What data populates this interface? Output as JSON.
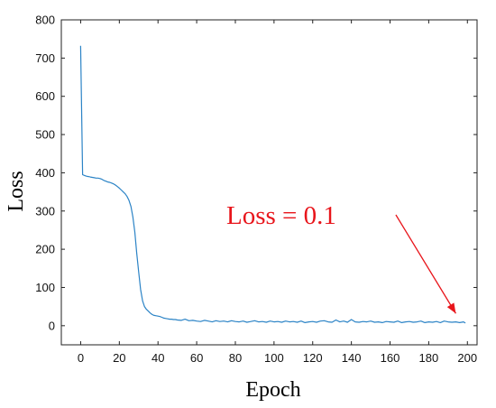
{
  "chart_data": {
    "type": "line",
    "title": "",
    "xlabel": "Epoch",
    "ylabel": "Loss",
    "xlim": [
      -10,
      205
    ],
    "ylim": [
      -50,
      800
    ],
    "xticks": [
      0,
      20,
      40,
      60,
      80,
      100,
      120,
      140,
      160,
      180,
      200
    ],
    "yticks": [
      0,
      100,
      200,
      300,
      400,
      500,
      600,
      700,
      800
    ],
    "grid": false,
    "legend": "none",
    "series": [
      {
        "color": "#2b83c6",
        "x": [
          0,
          1,
          2,
          3,
          4,
          5,
          6,
          7,
          8,
          9,
          10,
          11,
          12,
          13,
          14,
          15,
          16,
          17,
          18,
          19,
          20,
          21,
          22,
          23,
          24,
          25,
          26,
          27,
          28,
          29,
          30,
          31,
          32,
          33,
          34,
          35,
          36,
          37,
          38,
          39,
          40,
          41,
          42,
          43,
          44,
          45,
          46,
          47,
          48,
          49,
          50,
          52,
          54,
          56,
          58,
          60,
          62,
          64,
          66,
          68,
          70,
          72,
          74,
          76,
          78,
          80,
          82,
          84,
          86,
          88,
          90,
          92,
          94,
          96,
          98,
          100,
          102,
          104,
          106,
          108,
          110,
          112,
          114,
          116,
          118,
          120,
          122,
          124,
          126,
          128,
          130,
          132,
          134,
          136,
          138,
          140,
          142,
          144,
          146,
          148,
          150,
          152,
          154,
          156,
          158,
          160,
          162,
          164,
          166,
          168,
          170,
          172,
          174,
          176,
          178,
          180,
          182,
          184,
          186,
          188,
          190,
          192,
          194,
          196,
          198,
          199
        ],
        "y": [
          732,
          395,
          393,
          391,
          390,
          389,
          388,
          387,
          386,
          386,
          385,
          383,
          380,
          378,
          376,
          375,
          373,
          371,
          368,
          364,
          360,
          355,
          350,
          345,
          338,
          328,
          312,
          285,
          245,
          190,
          140,
          95,
          65,
          50,
          43,
          38,
          33,
          29,
          27,
          26,
          25,
          24,
          22,
          20,
          19,
          18,
          17,
          17,
          16,
          16,
          15,
          14,
          17,
          13,
          14,
          12,
          11,
          14,
          12,
          10,
          13,
          11,
          12,
          10,
          13,
          11,
          10,
          12,
          9,
          11,
          13,
          10,
          11,
          9,
          12,
          10,
          11,
          9,
          12,
          10,
          11,
          9,
          12,
          8,
          10,
          11,
          9,
          12,
          13,
          10,
          9,
          15,
          10,
          12,
          9,
          16,
          10,
          9,
          11,
          10,
          12,
          9,
          10,
          8,
          11,
          10,
          9,
          12,
          8,
          10,
          11,
          9,
          10,
          12,
          8,
          10,
          9,
          11,
          8,
          12,
          10,
          9,
          10,
          8,
          10,
          7
        ]
      }
    ],
    "annotation": {
      "text": "Loss = 0.1",
      "color": "#e8151b",
      "arrow_start": [
        163,
        290
      ],
      "arrow_end": [
        194,
        32
      ]
    }
  }
}
